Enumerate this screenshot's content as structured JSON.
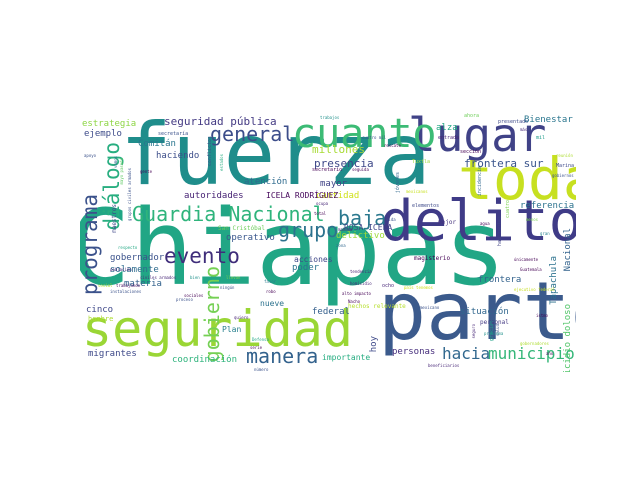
{
  "words": [
    {
      "id": "chiapas",
      "text": "Chiapas",
      "color": "#21a685"
    },
    {
      "id": "fuerza",
      "text": "fuerza",
      "color": "#1f8d8b"
    },
    {
      "id": "parte",
      "text": "parte",
      "color": "#3b5a8c"
    },
    {
      "id": "seguridad",
      "text": "seguridad",
      "color": "#9ad635"
    },
    {
      "id": "delito",
      "text": "delito",
      "color": "#3f3b87"
    },
    {
      "id": "toda",
      "text": "toda",
      "color": "#c7e020"
    },
    {
      "id": "lugar",
      "text": "lugar",
      "color": "#404287"
    },
    {
      "id": "cuanto",
      "text": "cuanto",
      "color": "#3cbb75"
    },
    {
      "id": "guardia-nacional",
      "text": "Guardia Nacional",
      "color": "#2fb47c"
    },
    {
      "id": "general",
      "text": "general",
      "color": "#3c4d8a"
    },
    {
      "id": "dialogo",
      "text": "diálogo",
      "color": "#28ae80"
    },
    {
      "id": "programa",
      "text": "programa",
      "color": "#3b528b"
    },
    {
      "id": "evento",
      "text": "evento",
      "color": "#3f2d7a"
    },
    {
      "id": "manera",
      "text": "manera",
      "color": "#33628d"
    },
    {
      "id": "grupo",
      "text": "grupo",
      "color": "#2c728e"
    },
    {
      "id": "baja",
      "text": "baja",
      "color": "#2a788e"
    },
    {
      "id": "gobierno",
      "text": "gobierno",
      "color": "#75d054"
    },
    {
      "id": "municipio",
      "text": "municipio",
      "color": "#35b779"
    },
    {
      "id": "hacia",
      "text": "hacia",
      "color": "#31688e"
    },
    {
      "id": "seguridad-publica",
      "text": "seguridad pública",
      "color": "#443a83"
    },
    {
      "id": "presencia",
      "text": "presencia",
      "color": "#3e4989"
    },
    {
      "id": "millones",
      "text": "millones",
      "color": "#a8db34"
    },
    {
      "id": "frontera-sur",
      "text": "frontera sur",
      "color": "#3a548c"
    },
    {
      "id": "referencia",
      "text": "referencia",
      "color": "#2c738e"
    },
    {
      "id": "estrategia",
      "text": "estrategia",
      "color": "#8ed645"
    },
    {
      "id": "ejemplo",
      "text": "ejemplo",
      "color": "#3e4c8a"
    },
    {
      "id": "comitan",
      "text": "Comitán",
      "color": "#2a768e"
    },
    {
      "id": "haciendo",
      "text": "haciendo",
      "color": "#3d4e8a"
    },
    {
      "id": "alza",
      "text": "alza",
      "color": "#22a884"
    },
    {
      "id": "bienestar",
      "text": "Bienestar",
      "color": "#2a768e"
    },
    {
      "id": "atencion",
      "text": "atención",
      "color": "#2f6b8e"
    },
    {
      "id": "mayor",
      "text": "mayor",
      "color": "#414487"
    },
    {
      "id": "cantidad",
      "text": "cantidad",
      "color": "#d0e11c"
    },
    {
      "id": "autoridades",
      "text": "autoridades",
      "color": "#482475"
    },
    {
      "id": "operativo",
      "text": "operativo",
      "color": "#39568c"
    },
    {
      "id": "delictivo",
      "text": "delictivo",
      "color": "#9fda3a"
    },
    {
      "id": "rosa-icela",
      "text": "ROSA ICELA",
      "color": "#3f4788"
    },
    {
      "id": "icela-rodriguez",
      "text": "ICELA RODRÍGUEZ",
      "color": "#46085c"
    },
    {
      "id": "san-cristobal",
      "text": "San Cristóbal",
      "color": "#6ccd5a"
    },
    {
      "id": "gobernador",
      "text": "gobernador",
      "color": "#3b528b"
    },
    {
      "id": "solamente",
      "text": "solamente",
      "color": "#2f6c8e"
    },
    {
      "id": "materia",
      "text": "materia",
      "color": "#33628d"
    },
    {
      "id": "poder",
      "text": "poder",
      "color": "#2c728e"
    },
    {
      "id": "acciones",
      "text": "acciones",
      "color": "#3f4788"
    },
    {
      "id": "magisterio",
      "text": "magisterio",
      "color": "#440154"
    },
    {
      "id": "situacion",
      "text": "situación",
      "color": "#31678e"
    },
    {
      "id": "frontera",
      "text": "frontera",
      "color": "#33638d"
    },
    {
      "id": "nacional",
      "text": "Nacional",
      "color": "#33638d"
    },
    {
      "id": "tapachula",
      "text": "Tapachula",
      "color": "#2c728e"
    },
    {
      "id": "homicidio-doloso",
      "text": "homicidio doloso",
      "color": "#52c569"
    },
    {
      "id": "cinco",
      "text": "cinco",
      "color": "#3f4889"
    },
    {
      "id": "hombre",
      "text": "hombre",
      "color": "#addc30"
    },
    {
      "id": "migrantes",
      "text": "migrantes",
      "color": "#3e4989"
    },
    {
      "id": "coordinacion",
      "text": "coordinación",
      "color": "#2eb37c"
    },
    {
      "id": "importante",
      "text": "importante",
      "color": "#26ad81"
    },
    {
      "id": "personas",
      "text": "personas",
      "color": "#472f7d"
    },
    {
      "id": "hoy",
      "text": "hoy",
      "color": "#3e4989"
    },
    {
      "id": "federal",
      "text": "federal",
      "color": "#35608d"
    },
    {
      "id": "nueve",
      "text": "nueve",
      "color": "#2c728e"
    },
    {
      "id": "plan",
      "text": "Plan",
      "color": "#27808e"
    },
    {
      "id": "trabajos",
      "text": "trabajos",
      "color": "#21918c"
    },
    {
      "id": "gracias",
      "text": "gracias",
      "color": "#1fa187"
    },
    {
      "id": "hechos-relevante",
      "text": "hechos relevante",
      "color": "#b5de2b"
    },
    {
      "id": "personal",
      "text": "personal",
      "color": "#443983"
    },
    {
      "id": "mejor",
      "text": "mejor",
      "color": "#46337e"
    },
    {
      "id": "ocho",
      "text": "ocho",
      "color": "#482878"
    },
    {
      "id": "maestros",
      "text": "maestros",
      "color": "#3f4788"
    },
    {
      "id": "conflictos",
      "text": "conflictos",
      "color": "#3b528b"
    },
    {
      "id": "habitantes",
      "text": "habitantes",
      "color": "#414487"
    },
    {
      "id": "cuatro",
      "text": "cuatro",
      "color": "#7ad151"
    },
    {
      "id": "elementos",
      "text": "elementos",
      "color": "#3e4a89"
    },
    {
      "id": "ahora",
      "text": "ahora",
      "color": "#6ece58"
    },
    {
      "id": "incidencia",
      "text": "incidencia",
      "color": "#31688e"
    },
    {
      "id": "mil",
      "text": "mil",
      "color": "#1e9b8a"
    },
    {
      "id": "jovenes",
      "text": "jóvenes",
      "color": "#31688e"
    },
    {
      "id": "secretario",
      "text": "secretario",
      "color": "#440154"
    },
    {
      "id": "secretaria",
      "text": "secretaría",
      "color": "#3b528b"
    },
    {
      "id": "tuxtla",
      "text": "Tuxtla",
      "color": "#9fda3a"
    },
    {
      "id": "seccion",
      "text": "sección",
      "color": "#440154"
    },
    {
      "id": "marina",
      "text": "Marina",
      "color": "#3e4a89"
    },
    {
      "id": "reunion",
      "text": "reunión",
      "color": "#addc30"
    },
    {
      "id": "presentado",
      "text": "presentado",
      "color": "#3e4a89"
    },
    {
      "id": "entrada",
      "text": "entrada",
      "color": "#482475"
    },
    {
      "id": "rescate",
      "text": "rescate",
      "color": "#440154"
    },
    {
      "id": "vamos",
      "text": "vamos",
      "color": "#31688e"
    },
    {
      "id": "mayo-pasado",
      "text": "mayo pasado",
      "color": "#5ec962"
    },
    {
      "id": "grupos-civiles-armados",
      "text": "grupos civiles armados",
      "color": "#3b528b"
    },
    {
      "id": "estados",
      "text": "estados",
      "color": "#27ad81"
    },
    {
      "id": "apoyo",
      "text": "apoyo",
      "color": "#3b528b"
    },
    {
      "id": "gente",
      "text": "gente",
      "color": "#440154"
    },
    {
      "id": "poblacion",
      "text": "población",
      "color": "#482878"
    },
    {
      "id": "civiles-armados",
      "text": "civiles armados",
      "color": "#482878"
    },
    {
      "id": "trabajando",
      "text": "trabajando",
      "color": "#471063"
    },
    {
      "id": "instalaciones",
      "text": "instalaciones",
      "color": "#3b528b"
    },
    {
      "id": "social",
      "text": "social",
      "color": "#b5de2b"
    },
    {
      "id": "sociales",
      "text": "sociales",
      "color": "#440154"
    },
    {
      "id": "respecto",
      "text": "respecto",
      "color": "#22a884"
    },
    {
      "id": "ningun",
      "text": "ningún",
      "color": "#3b528b"
    },
    {
      "id": "bien",
      "text": "bien",
      "color": "#21918c"
    },
    {
      "id": "llevan",
      "text": "llevan",
      "color": "#7ad151"
    },
    {
      "id": "proceso",
      "text": "proceso",
      "color": "#3b528b"
    },
    {
      "id": "quiero",
      "text": "quiero",
      "color": "#482475"
    },
    {
      "id": "defensa",
      "text": "Defensa",
      "color": "#22a884"
    },
    {
      "id": "serie",
      "text": "serie",
      "color": "#440154"
    },
    {
      "id": "numero",
      "text": "número",
      "color": "#3b528b"
    },
    {
      "id": "alto-impacto",
      "text": "alto impacto",
      "color": "#440154"
    },
    {
      "id": "homicidio",
      "text": "homicidio",
      "color": "#482878"
    },
    {
      "id": "favor",
      "text": "favor",
      "color": "#2a788e"
    },
    {
      "id": "robo",
      "text": "robo",
      "color": "#440154"
    },
    {
      "id": "nacho",
      "text": "Nacho",
      "color": "#440154"
    },
    {
      "id": "tendencia",
      "text": "tendencia",
      "color": "#482475"
    },
    {
      "id": "zona",
      "text": "zona",
      "color": "#31688e"
    },
    {
      "id": "manana",
      "text": "mañana",
      "color": "#482475"
    },
    {
      "id": "total",
      "text": "total",
      "color": "#440154"
    },
    {
      "id": "ocupa",
      "text": "ocupa",
      "color": "#482878"
    },
    {
      "id": "mexicano",
      "text": "mexicano",
      "color": "#3b528b"
    },
    {
      "id": "mexicanos",
      "text": "mexicanos",
      "color": "#c7e020"
    },
    {
      "id": "unicamente",
      "text": "únicamente",
      "color": "#440154"
    },
    {
      "id": "guatemala",
      "text": "Guatemala",
      "color": "#440154"
    },
    {
      "id": "ejecutivo-federal",
      "text": "ejecutivo federal",
      "color": "#c7e020"
    },
    {
      "id": "gobernadores",
      "text": "gobernadores",
      "color": "#addc30"
    },
    {
      "id": "beneficiarios",
      "text": "beneficiarios",
      "color": "#482878"
    },
    {
      "id": "seguro",
      "text": "seguro",
      "color": "#482878"
    },
    {
      "id": "istmo",
      "text": "istmo",
      "color": "#440154"
    },
    {
      "id": "salud",
      "text": "salud",
      "color": "#3b528b"
    },
    {
      "id": "problema",
      "text": "problema",
      "color": "#21918c"
    },
    {
      "id": "gran",
      "text": "gran",
      "color": "#27808e"
    },
    {
      "id": "pais-tenemos",
      "text": "país tenemos",
      "color": "#d0e11c"
    },
    {
      "id": "menos",
      "text": "menos",
      "color": "#7ad151"
    },
    {
      "id": "vida",
      "text": "vida",
      "color": "#3b528b"
    },
    {
      "id": "cuatro-mil",
      "text": "cuatro mil",
      "color": "#3b528b"
    },
    {
      "id": "seguida",
      "text": "seguida",
      "color": "#440154"
    },
    {
      "id": "agua",
      "text": "agua",
      "color": "#440154"
    },
    {
      "id": "mas",
      "text": "más",
      "color": "#482878"
    },
    {
      "id": "gobiernos",
      "text": "gobiernos",
      "color": "#3b528b"
    },
    {
      "id": "ano",
      "text": "año",
      "color": "#440154"
    }
  ]
}
